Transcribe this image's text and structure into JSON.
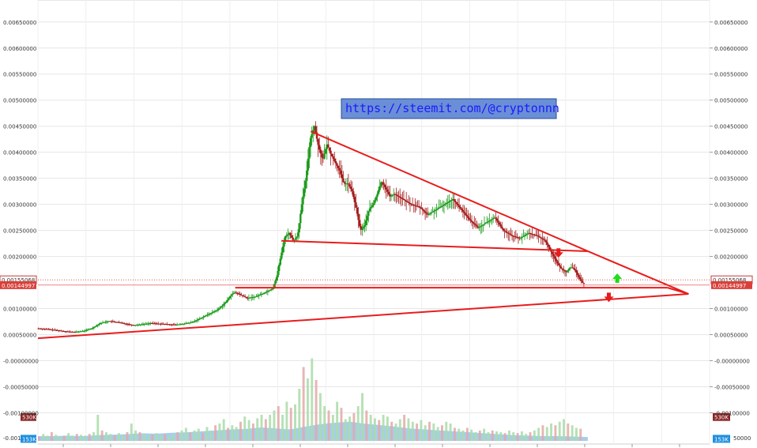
{
  "chart_data": {
    "type": "candlestick",
    "watermark": "https://steemit.com/@cryptonnn",
    "y_axis": {
      "range": [
        -0.0011,
        0.0068
      ],
      "tick_labels": [
        {
          "value": 0.0065,
          "label": "0.00650000"
        },
        {
          "value": 0.006,
          "label": "0.00600000"
        },
        {
          "value": 0.0055,
          "label": "0.00550000"
        },
        {
          "value": 0.005,
          "label": "0.00500000"
        },
        {
          "value": 0.0045,
          "label": "0.00450000"
        },
        {
          "value": 0.004,
          "label": "0.00400000"
        },
        {
          "value": 0.0035,
          "label": "0.00350000"
        },
        {
          "value": 0.003,
          "label": "0.00300000"
        },
        {
          "value": 0.0025,
          "label": "0.00250000"
        },
        {
          "value": 0.002,
          "label": "0.00200000"
        },
        {
          "value": 0.001,
          "label": "0.00100000"
        },
        {
          "value": 0.0005,
          "label": "0.00050000"
        },
        {
          "value": 0.0,
          "label": "-0.00000000"
        },
        {
          "value": -0.0005,
          "label": "-0.00050000"
        },
        {
          "value": -0.001,
          "label": "-0.00100000"
        }
      ],
      "left_extra_labels": [
        {
          "value": -0.00148,
          "label": "-0.001"
        }
      ],
      "right_extra_labels": [
        {
          "value": -0.00148,
          "label": "50000"
        }
      ]
    },
    "price_markers": [
      {
        "value": 0.00155068,
        "label": "0.00155068",
        "style": "dotted"
      },
      {
        "value": 0.00144997,
        "label": "0.00144997",
        "style": "filled"
      }
    ],
    "volume_markers": [
      {
        "label": "530K",
        "color": "#8b2626",
        "value": -0.00108
      },
      {
        "label": "153K",
        "color": "#1e8fe0",
        "value": -0.0015
      }
    ],
    "price_path": [
      [
        0,
        0.00062
      ],
      [
        3,
        0.0006
      ],
      [
        5,
        0.00058
      ],
      [
        7,
        0.00056
      ],
      [
        9,
        0.00055
      ],
      [
        11,
        0.00057
      ],
      [
        13,
        0.00062
      ],
      [
        15,
        0.00072
      ],
      [
        17,
        0.00076
      ],
      [
        19,
        0.00074
      ],
      [
        21,
        0.00071
      ],
      [
        23,
        0.00068
      ],
      [
        25,
        0.0007
      ],
      [
        27,
        0.00072
      ],
      [
        29,
        0.00071
      ],
      [
        31,
        0.0007
      ],
      [
        33,
        0.00069
      ],
      [
        35,
        0.00071
      ],
      [
        37,
        0.00074
      ],
      [
        39,
        0.00082
      ],
      [
        41,
        0.0009
      ],
      [
        43,
        0.00098
      ],
      [
        45,
        0.00113
      ],
      [
        46,
        0.00125
      ],
      [
        47,
        0.00131
      ],
      [
        48,
        0.00128
      ],
      [
        50,
        0.0012
      ],
      [
        52,
        0.00123
      ],
      [
        54,
        0.0013
      ],
      [
        56,
        0.00138
      ],
      [
        57,
        0.0016
      ],
      [
        58,
        0.002
      ],
      [
        59,
        0.00238
      ],
      [
        60,
        0.00245
      ],
      [
        61,
        0.0023
      ],
      [
        62,
        0.0024
      ],
      [
        63,
        0.003
      ],
      [
        64,
        0.0035
      ],
      [
        65,
        0.00425
      ],
      [
        66,
        0.0045
      ],
      [
        67,
        0.0041
      ],
      [
        68,
        0.00385
      ],
      [
        69,
        0.00415
      ],
      [
        70,
        0.00395
      ],
      [
        71,
        0.0038
      ],
      [
        72,
        0.00365
      ],
      [
        73,
        0.0034
      ],
      [
        74,
        0.0034
      ],
      [
        75,
        0.00325
      ],
      [
        76,
        0.0029
      ],
      [
        77,
        0.0025
      ],
      [
        78,
        0.0026
      ],
      [
        79,
        0.0029
      ],
      [
        80,
        0.003
      ],
      [
        81,
        0.0032
      ],
      [
        82,
        0.00345
      ],
      [
        83,
        0.0033
      ],
      [
        84,
        0.00315
      ],
      [
        85,
        0.0032
      ],
      [
        87,
        0.0031
      ],
      [
        89,
        0.003
      ],
      [
        91,
        0.00295
      ],
      [
        93,
        0.0028
      ],
      [
        95,
        0.0029
      ],
      [
        97,
        0.003
      ],
      [
        99,
        0.0031
      ],
      [
        101,
        0.0029
      ],
      [
        103,
        0.0027
      ],
      [
        105,
        0.00255
      ],
      [
        107,
        0.00265
      ],
      [
        109,
        0.00275
      ],
      [
        111,
        0.0025
      ],
      [
        113,
        0.0024
      ],
      [
        115,
        0.00235
      ],
      [
        117,
        0.00245
      ],
      [
        119,
        0.0024
      ],
      [
        121,
        0.0023
      ],
      [
        123,
        0.002
      ],
      [
        124,
        0.00185
      ],
      [
        125,
        0.00175
      ],
      [
        126,
        0.0017
      ],
      [
        127,
        0.0018
      ],
      [
        128,
        0.00175
      ],
      [
        129,
        0.0016
      ],
      [
        130,
        0.00148
      ]
    ],
    "volume": [
      0.05,
      0.08,
      0.06,
      0.1,
      0.07,
      0.05,
      0.06,
      0.09,
      0.06,
      0.08,
      0.07,
      0.06,
      0.08,
      0.1,
      0.3,
      0.12,
      0.1,
      0.08,
      0.06,
      0.09,
      0.07,
      0.1,
      0.2,
      0.12,
      0.1,
      0.08,
      0.06,
      0.07,
      0.09,
      0.06,
      0.08,
      0.05,
      0.07,
      0.1,
      0.12,
      0.15,
      0.1,
      0.12,
      0.14,
      0.09,
      0.16,
      0.12,
      0.18,
      0.2,
      0.25,
      0.15,
      0.18,
      0.16,
      0.22,
      0.28,
      0.24,
      0.2,
      0.26,
      0.3,
      0.25,
      0.3,
      0.35,
      0.4,
      0.3,
      0.45,
      0.38,
      0.42,
      0.6,
      0.85,
      0.72,
      0.95,
      0.7,
      0.55,
      0.4,
      0.35,
      0.3,
      0.45,
      0.38,
      0.25,
      0.28,
      0.32,
      0.4,
      0.55,
      0.35,
      0.3,
      0.26,
      0.24,
      0.3,
      0.28,
      0.22,
      0.2,
      0.25,
      0.3,
      0.26,
      0.22,
      0.2,
      0.24,
      0.18,
      0.22,
      0.2,
      0.16,
      0.18,
      0.22,
      0.2,
      0.15,
      0.14,
      0.12,
      0.15,
      0.13,
      0.1,
      0.12,
      0.14,
      0.1,
      0.12,
      0.11,
      0.1,
      0.09,
      0.12,
      0.1,
      0.09,
      0.11,
      0.08,
      0.1,
      0.12,
      0.15,
      0.18,
      0.16,
      0.2,
      0.18,
      0.22,
      0.25,
      0.2,
      0.18,
      0.15,
      0.14
    ],
    "volume_area": [
      0.1,
      0.1,
      0.11,
      0.1,
      0.12,
      0.13,
      0.14,
      0.16,
      0.15,
      0.17,
      0.18,
      0.2,
      0.22,
      0.24,
      0.25,
      0.28,
      0.26,
      0.24,
      0.3,
      0.35,
      0.38,
      0.4,
      0.36,
      0.33,
      0.3,
      0.26,
      0.24,
      0.22,
      0.2,
      0.18,
      0.16,
      0.14,
      0.12,
      0.11,
      0.1,
      0.1,
      0.09,
      0.08
    ],
    "trend_lines": [
      {
        "from": [
          65,
          0.0044
        ],
        "to": [
          131,
          0.0021
        ],
        "color": "#e81c1c"
      },
      {
        "from": [
          58,
          0.0023
        ],
        "to": [
          131,
          0.0021
        ],
        "color": "#e81c1c"
      },
      {
        "from": [
          47,
          0.0014
        ],
        "to": [
          150,
          0.0014
        ],
        "color": "#e81c1c"
      },
      {
        "from": [
          0,
          0.00043
        ],
        "to": [
          155,
          0.00128
        ],
        "color": "#e81c1c"
      },
      {
        "from": [
          131,
          0.0021
        ],
        "to": [
          155,
          0.00128
        ],
        "color": "#e81c1c"
      },
      {
        "from": [
          150,
          0.0014
        ],
        "to": [
          155,
          0.00128
        ],
        "color": "#e81c1c"
      }
    ],
    "arrows": [
      {
        "x": 124,
        "y": 0.00205,
        "dir": "down",
        "color": "#e81c1c"
      },
      {
        "x": 138,
        "y": 0.0016,
        "dir": "up",
        "color": "#19e319"
      },
      {
        "x": 136,
        "y": 0.0012,
        "dir": "down",
        "color": "#e81c1c"
      }
    ],
    "x_range": [
      0,
      160
    ],
    "colors": {
      "up": "#1a9a1a",
      "down": "#a51c1c",
      "grid": "#e6e6e6",
      "trend": "#e81c1c",
      "volume_up": "#a9dca9",
      "volume_down": "#e3a8a8",
      "volume_area": "#6aaee0"
    }
  }
}
